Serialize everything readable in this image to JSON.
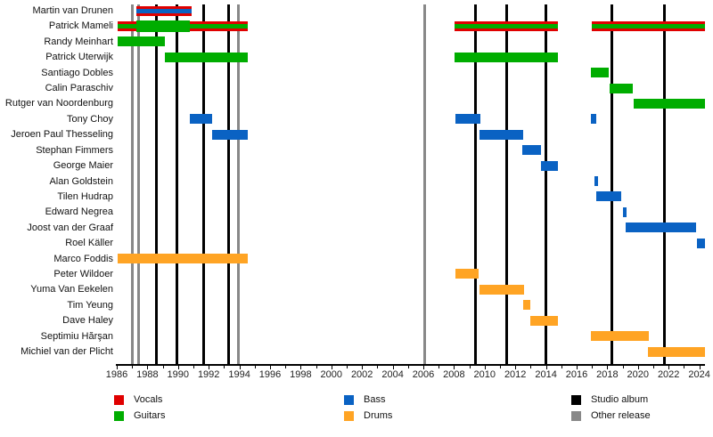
{
  "colors": {
    "vocals": "#E00000",
    "guitars": "#00AD00",
    "bass": "#0A62C3",
    "drums": "#FFA424",
    "studio": "#000000",
    "other": "#888888"
  },
  "legend": {
    "items": [
      {
        "label": "Vocals",
        "color_key": "vocals"
      },
      {
        "label": "Guitars",
        "color_key": "guitars"
      },
      {
        "label": "Bass",
        "color_key": "bass"
      },
      {
        "label": "Drums",
        "color_key": "drums"
      },
      {
        "label": "Studio album",
        "color_key": "studio"
      },
      {
        "label": "Other release",
        "color_key": "other"
      }
    ]
  },
  "chart_data": {
    "type": "timeline",
    "x_axis": {
      "start": 1986,
      "end": 2024.4,
      "tick_step": 2,
      "minor_step": 1,
      "tick_labels": [
        "1986",
        "1988",
        "1990",
        "1992",
        "1994",
        "1996",
        "1998",
        "2000",
        "2002",
        "2004",
        "2006",
        "2008",
        "2010",
        "2012",
        "2014",
        "2016",
        "2018",
        "2020",
        "2022",
        "2024"
      ]
    },
    "members": [
      {
        "name": "Martin van Drunen",
        "segments": [
          {
            "roles": [
              "vocals",
              "bass"
            ],
            "start": 1987.3,
            "end": 1990.9
          }
        ]
      },
      {
        "name": "Patrick Mameli",
        "segments": [
          {
            "roles": [
              "vocals",
              "guitars"
            ],
            "start": 1986.05,
            "end": 1987.3
          },
          {
            "roles": [
              "guitars"
            ],
            "start": 1987.3,
            "end": 1990.75,
            "thick": true
          },
          {
            "roles": [
              "vocals",
              "guitars"
            ],
            "start": 1990.75,
            "end": 1994.55
          },
          {
            "roles": [
              "vocals",
              "guitars"
            ],
            "start": 2008.05,
            "end": 2014.8
          },
          {
            "roles": [
              "vocals",
              "guitars"
            ],
            "start": 2017.0,
            "end": 2024.35
          }
        ]
      },
      {
        "name": "Randy Meinhart",
        "segments": [
          {
            "roles": [
              "guitars"
            ],
            "start": 1986.05,
            "end": 1989.15
          }
        ]
      },
      {
        "name": "Patrick Uterwijk",
        "segments": [
          {
            "roles": [
              "guitars"
            ],
            "start": 1989.15,
            "end": 1994.55
          },
          {
            "roles": [
              "guitars"
            ],
            "start": 2008.05,
            "end": 2014.8
          }
        ]
      },
      {
        "name": "Santiago Dobles",
        "segments": [
          {
            "roles": [
              "guitars"
            ],
            "start": 2016.95,
            "end": 2018.1
          }
        ]
      },
      {
        "name": "Calin Paraschiv",
        "segments": [
          {
            "roles": [
              "guitars"
            ],
            "start": 2018.15,
            "end": 2019.65
          }
        ]
      },
      {
        "name": "Rutger van Noordenburg",
        "segments": [
          {
            "roles": [
              "guitars"
            ],
            "start": 2019.7,
            "end": 2024.35
          }
        ]
      },
      {
        "name": "Tony Choy",
        "segments": [
          {
            "roles": [
              "bass"
            ],
            "start": 1990.75,
            "end": 1992.2
          },
          {
            "roles": [
              "bass"
            ],
            "start": 2008.1,
            "end": 2009.7
          },
          {
            "roles": [
              "bass"
            ],
            "start": 2016.95,
            "end": 2017.3
          }
        ]
      },
      {
        "name": "Jeroen Paul Thesseling",
        "segments": [
          {
            "roles": [
              "bass"
            ],
            "start": 1992.2,
            "end": 1994.55
          },
          {
            "roles": [
              "bass"
            ],
            "start": 2009.65,
            "end": 2012.5
          }
        ]
      },
      {
        "name": "Stephan Fimmers",
        "segments": [
          {
            "roles": [
              "bass"
            ],
            "start": 2012.45,
            "end": 2013.65
          }
        ]
      },
      {
        "name": "George Maier",
        "segments": [
          {
            "roles": [
              "bass"
            ],
            "start": 2013.65,
            "end": 2014.8
          }
        ]
      },
      {
        "name": "Alan Goldstein",
        "segments": [
          {
            "roles": [
              "bass"
            ],
            "start": 2017.15,
            "end": 2017.4
          }
        ]
      },
      {
        "name": "Tilen Hudrap",
        "segments": [
          {
            "roles": [
              "bass"
            ],
            "start": 2017.3,
            "end": 2018.9
          }
        ]
      },
      {
        "name": "Edward Negrea",
        "segments": [
          {
            "roles": [
              "bass"
            ],
            "start": 2019.0,
            "end": 2019.25
          }
        ]
      },
      {
        "name": "Joost van der Graaf",
        "segments": [
          {
            "roles": [
              "bass"
            ],
            "start": 2019.2,
            "end": 2023.8
          }
        ]
      },
      {
        "name": "Roel Käller",
        "segments": [
          {
            "roles": [
              "bass"
            ],
            "start": 2023.85,
            "end": 2024.35
          }
        ]
      },
      {
        "name": "Marco Foddis",
        "segments": [
          {
            "roles": [
              "drums"
            ],
            "start": 1986.05,
            "end": 1994.55
          }
        ]
      },
      {
        "name": "Peter Wildoer",
        "segments": [
          {
            "roles": [
              "drums"
            ],
            "start": 2008.1,
            "end": 2009.6
          }
        ]
      },
      {
        "name": "Yuma Van Eekelen",
        "segments": [
          {
            "roles": [
              "drums"
            ],
            "start": 2009.65,
            "end": 2012.55
          }
        ]
      },
      {
        "name": "Tim Yeung",
        "segments": [
          {
            "roles": [
              "drums"
            ],
            "start": 2012.5,
            "end": 2013.0
          }
        ]
      },
      {
        "name": "Dave Haley",
        "segments": [
          {
            "roles": [
              "drums"
            ],
            "start": 2013.0,
            "end": 2014.8
          }
        ]
      },
      {
        "name": "Septimiu Hărşan",
        "segments": [
          {
            "roles": [
              "drums"
            ],
            "start": 2016.95,
            "end": 2020.7
          }
        ]
      },
      {
        "name": "Michiel van der Plicht",
        "segments": [
          {
            "roles": [
              "drums"
            ],
            "start": 2020.65,
            "end": 2024.4
          }
        ]
      }
    ],
    "releases": [
      {
        "year": 1987.0,
        "type": "other"
      },
      {
        "year": 1987.45,
        "type": "other"
      },
      {
        "year": 1988.6,
        "type": "studio"
      },
      {
        "year": 1989.9,
        "type": "studio"
      },
      {
        "year": 1991.65,
        "type": "studio"
      },
      {
        "year": 1993.3,
        "type": "studio"
      },
      {
        "year": 1993.95,
        "type": "other"
      },
      {
        "year": 2006.1,
        "type": "other"
      },
      {
        "year": 2009.4,
        "type": "studio"
      },
      {
        "year": 2011.45,
        "type": "studio"
      },
      {
        "year": 2014.0,
        "type": "studio"
      },
      {
        "year": 2018.3,
        "type": "studio"
      },
      {
        "year": 2021.7,
        "type": "studio"
      }
    ]
  }
}
